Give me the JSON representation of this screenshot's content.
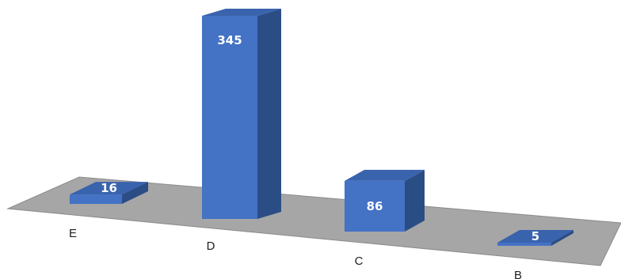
{
  "chart_data": {
    "type": "bar",
    "style": "3d-column-perspective",
    "categories": [
      "E",
      "D",
      "C",
      "B"
    ],
    "values": [
      16,
      345,
      86,
      5
    ],
    "data_labels": [
      "16",
      "345",
      "86",
      "5"
    ],
    "title": "",
    "xlabel": "",
    "ylabel": "",
    "grid": false,
    "legend": "none",
    "colors": {
      "bar_front": "#4472c4",
      "bar_top": "#3a63ad",
      "bar_side": "#2b4d85",
      "floor": "#a6a6a6",
      "floor_edge": "#8a8a8a",
      "category_text": "#1f1f1f",
      "value_text": "#ffffff"
    }
  }
}
